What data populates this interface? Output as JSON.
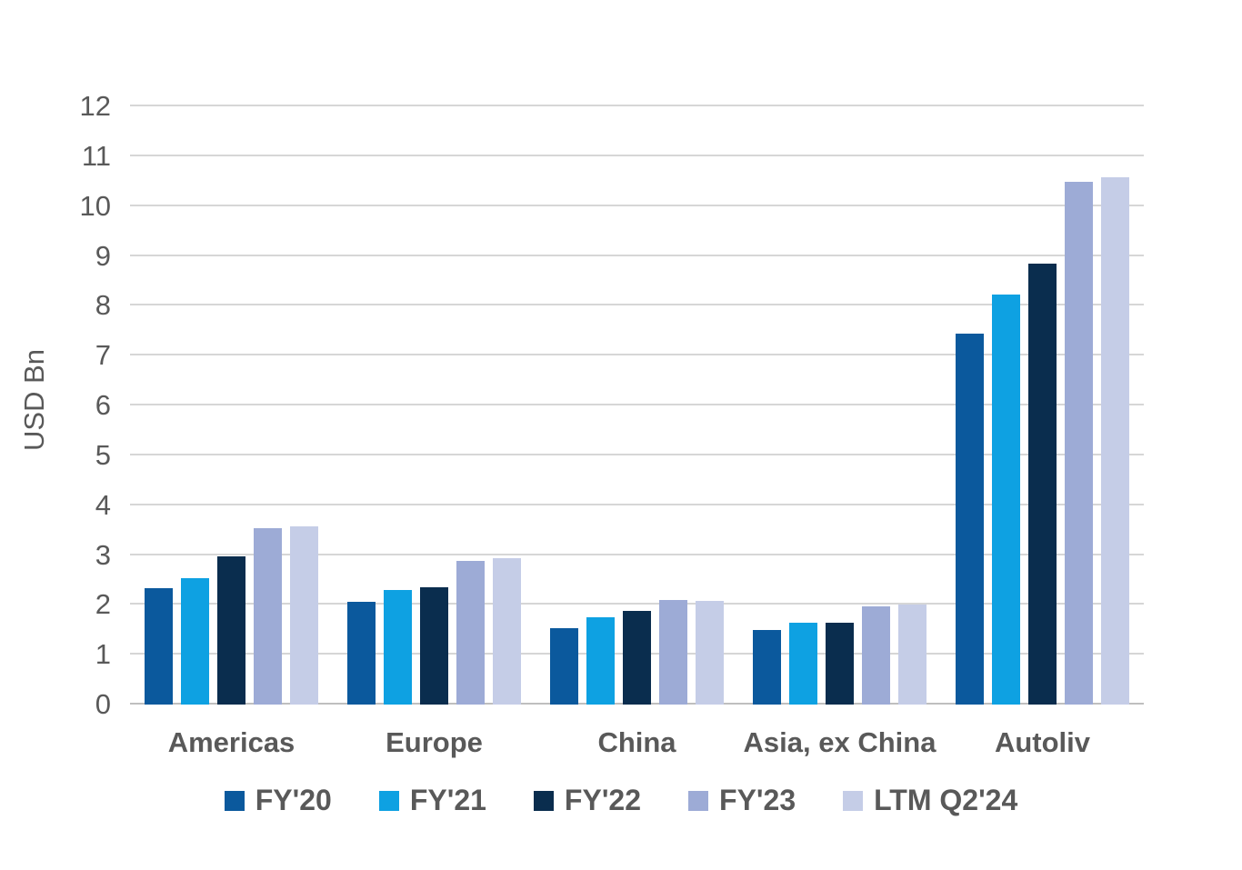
{
  "chart_data": {
    "type": "bar",
    "title": "",
    "ylabel": "USD Bn",
    "xlabel": "",
    "ylim": [
      0,
      12
    ],
    "yticks": [
      0,
      1,
      2,
      3,
      4,
      5,
      6,
      7,
      8,
      9,
      10,
      11,
      12
    ],
    "grid": true,
    "legend_position": "bottom",
    "categories": [
      "Americas",
      "Europe",
      "China",
      "Asia, ex China",
      "Autoliv"
    ],
    "series": [
      {
        "name": "FY'20",
        "color": "#0b599d",
        "values": [
          2.33,
          2.06,
          1.54,
          1.5,
          7.45
        ]
      },
      {
        "name": "FY'21",
        "color": "#0ea1e2",
        "values": [
          2.53,
          2.3,
          1.76,
          1.64,
          8.23
        ]
      },
      {
        "name": "FY'22",
        "color": "#0a2d4e",
        "values": [
          2.97,
          2.36,
          1.88,
          1.64,
          8.84
        ]
      },
      {
        "name": "FY'23",
        "color": "#9dabd6",
        "values": [
          3.54,
          2.88,
          2.1,
          1.97,
          10.48
        ]
      },
      {
        "name": "LTM Q2'24",
        "color": "#c5cde7",
        "values": [
          3.57,
          2.93,
          2.08,
          2.0,
          10.58
        ]
      }
    ]
  },
  "colors": {
    "text": "#595959",
    "gridline": "#d6d6d6",
    "background": "#ffffff"
  }
}
